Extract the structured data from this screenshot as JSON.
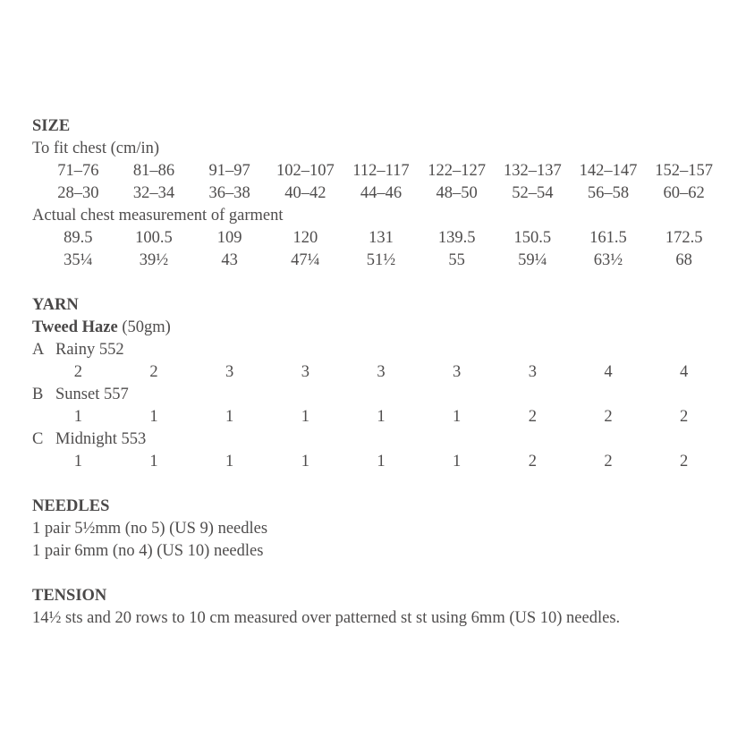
{
  "page": {
    "background": "#ffffff",
    "text_color": "#4f4d4d"
  },
  "size_section": {
    "heading": "SIZE",
    "to_fit_label": "To fit chest (cm/in)",
    "to_fit_cm": [
      "71–76",
      "81–86",
      "91–97",
      "102–107",
      "112–117",
      "122–127",
      "132–137",
      "142–147",
      "152–157"
    ],
    "to_fit_in": [
      "28–30",
      "32–34",
      "36–38",
      "40–42",
      "44–46",
      "48–50",
      "52–54",
      "56–58",
      "60–62"
    ],
    "actual_label": "Actual chest measurement of garment",
    "actual_cm": [
      "89.5",
      "100.5",
      "109",
      "120",
      "131",
      "139.5",
      "150.5",
      "161.5",
      "172.5"
    ],
    "actual_in": [
      "35¼",
      "39½",
      "43",
      "47¼",
      "51½",
      "55",
      "59¼",
      "63½",
      "68"
    ]
  },
  "yarn_section": {
    "heading": "YARN",
    "yarn_name": "Tweed Haze",
    "yarn_weight": " (50gm)",
    "colorways": [
      {
        "letter": "A",
        "name": "Rainy 552",
        "quantities": [
          "2",
          "2",
          "3",
          "3",
          "3",
          "3",
          "3",
          "4",
          "4"
        ]
      },
      {
        "letter": "B",
        "name": "Sunset 557",
        "quantities": [
          "1",
          "1",
          "1",
          "1",
          "1",
          "1",
          "2",
          "2",
          "2"
        ]
      },
      {
        "letter": "C",
        "name": "Midnight 553",
        "quantities": [
          "1",
          "1",
          "1",
          "1",
          "1",
          "1",
          "2",
          "2",
          "2"
        ]
      }
    ]
  },
  "needles_section": {
    "heading": "NEEDLES",
    "line1": "1 pair 5½mm (no 5) (US 9) needles",
    "line2": "1 pair 6mm (no 4) (US 10) needles"
  },
  "tension_section": {
    "heading": "TENSION",
    "line": "14½ sts and 20 rows to 10 cm measured over patterned st st using 6mm (US 10) needles."
  }
}
